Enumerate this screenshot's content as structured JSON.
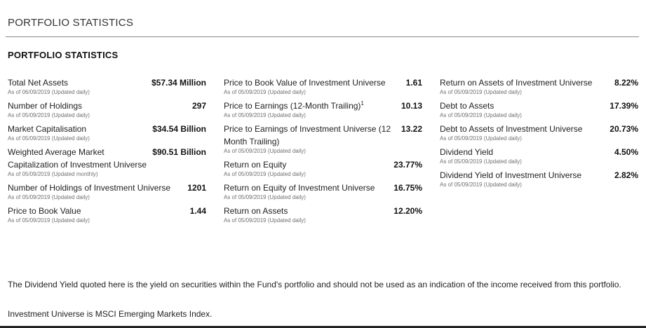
{
  "header": {
    "section_title": "PORTFOLIO STATISTICS",
    "sub_title": "PORTFOLIO STATISTICS"
  },
  "columns": [
    [
      {
        "label": "Total Net Assets",
        "asof": "As of 06/09/2019 (Updated daily)",
        "value": "$57.34 Million"
      },
      {
        "label": "Number of Holdings",
        "asof": "As of 05/09/2019 (Updated daily)",
        "value": "297"
      },
      {
        "label": "Market Capitalisation",
        "asof": "As of 05/09/2019 (Updated daily)",
        "value": "$34.54 Billion"
      },
      {
        "label": "Weighted Average Market Capitalization of Investment Universe",
        "asof": "As of 05/09/2019 (Updated monthly)",
        "value": "$90.51 Billion"
      },
      {
        "label": "Number of Holdings of Investment Universe",
        "asof": "As of 05/09/2019 (Updated daily)",
        "value": "1201"
      },
      {
        "label": "Price to Book Value",
        "asof": "As of 05/09/2019 (Updated daily)",
        "value": "1.44"
      }
    ],
    [
      {
        "label": "Price to Book Value of Investment Universe",
        "asof": "As of 05/09/2019 (Updated daily)",
        "value": "1.61"
      },
      {
        "label": "Price to Earnings (12-Month Trailing)",
        "sup": "1",
        "asof": "As of 05/09/2019 (Updated daily)",
        "value": "10.13"
      },
      {
        "label": "Price to Earnings of Investment Universe (12 Month Trailing)",
        "asof": "As of 05/09/2019 (Updated daily)",
        "value": "13.22"
      },
      {
        "label": "Return on Equity",
        "asof": "As of 05/09/2019 (Updated daily)",
        "value": "23.77%"
      },
      {
        "label": "Return on Equity of Investment Universe",
        "asof": "As of 05/09/2019 (Updated daily)",
        "value": "16.75%"
      },
      {
        "label": "Return on Assets",
        "asof": "As of 05/09/2019 (Updated daily)",
        "value": "12.20%"
      }
    ],
    [
      {
        "label": "Return on Assets of Investment Universe",
        "asof": "As of 05/09/2019 (Updated daily)",
        "value": "8.22%"
      },
      {
        "label": "Debt to Assets",
        "asof": "As of 05/09/2019 (Updated daily)",
        "value": "17.39%"
      },
      {
        "label": "Debt to Assets of Investment Universe",
        "asof": "As of 05/09/2019 (Updated daily)",
        "value": "20.73%"
      },
      {
        "label": "Dividend Yield",
        "asof": "As of 05/09/2019 (Updated daily)",
        "value": "4.50%"
      },
      {
        "label": "Dividend Yield of Investment Universe",
        "asof": "As of 05/09/2019 (Updated daily)",
        "value": "2.82%"
      }
    ]
  ],
  "footnotes": {
    "dividend_note": "The Dividend Yield quoted here is the yield on securities within the Fund's portfolio and should not be used as an indication of the income received from this portfolio.",
    "universe_note": "Investment Universe is MSCI Emerging Markets Index."
  }
}
